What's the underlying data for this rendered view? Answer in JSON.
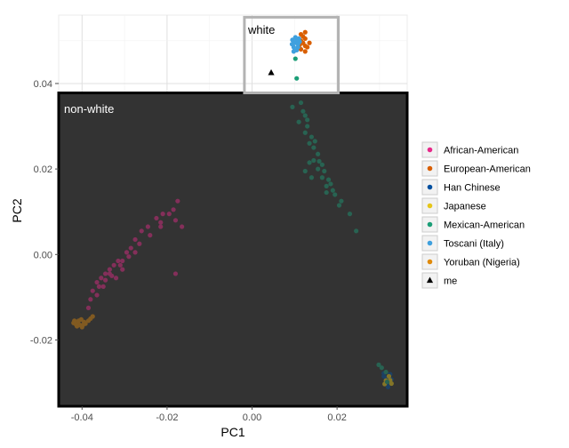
{
  "chart_data": {
    "type": "scatter",
    "title": "",
    "xlabel": "PC1",
    "ylabel": "PC2",
    "xlim": [
      -0.0455,
      0.0365
    ],
    "ylim": [
      -0.0355,
      0.056
    ],
    "x_ticks": [
      -0.04,
      -0.02,
      0.0,
      0.02
    ],
    "x_tick_labels": [
      "-0.04",
      "-0.02",
      "0.00",
      "0.02"
    ],
    "y_ticks": [
      -0.02,
      0.0,
      0.02,
      0.04
    ],
    "y_tick_labels": [
      "-0.02",
      "0.00",
      "0.02",
      "0.04"
    ],
    "grid": true,
    "legend_position": "right",
    "annotations": {
      "white_label": "white",
      "non_white_label": "non-white"
    },
    "regions": {
      "non_white": {
        "x": [
          -0.0455,
          0.0365
        ],
        "y": [
          -0.0355,
          0.0378
        ]
      },
      "white": {
        "x": [
          -0.0018,
          0.0203
        ],
        "y": [
          0.0378,
          0.0555
        ]
      }
    },
    "series": [
      {
        "name": "African-American",
        "color": "#e7298a",
        "marker": "circle",
        "points": [
          [
            -0.0175,
            0.0125
          ],
          [
            -0.018,
            0.008
          ],
          [
            -0.0165,
            0.0065
          ],
          [
            -0.0195,
            0.0095
          ],
          [
            -0.0185,
            0.0105
          ],
          [
            -0.021,
            0.0095
          ],
          [
            -0.0225,
            0.0085
          ],
          [
            -0.0215,
            0.0075
          ],
          [
            -0.0245,
            0.0065
          ],
          [
            -0.026,
            0.0055
          ],
          [
            -0.024,
            0.0045
          ],
          [
            -0.0275,
            0.0035
          ],
          [
            -0.0265,
            0.0025
          ],
          [
            -0.0285,
            0.0015
          ],
          [
            -0.0275,
            0.0005
          ],
          [
            -0.0295,
            0.0005
          ],
          [
            -0.029,
            -0.0005
          ],
          [
            -0.0305,
            -0.0015
          ],
          [
            -0.0315,
            -0.0015
          ],
          [
            -0.031,
            -0.0025
          ],
          [
            -0.0325,
            -0.0025
          ],
          [
            -0.0335,
            -0.0035
          ],
          [
            -0.0345,
            -0.0045
          ],
          [
            -0.033,
            -0.005
          ],
          [
            -0.0355,
            -0.0055
          ],
          [
            -0.0345,
            -0.006
          ],
          [
            -0.0365,
            -0.0065
          ],
          [
            -0.035,
            -0.0075
          ],
          [
            -0.0375,
            -0.0085
          ],
          [
            -0.0365,
            -0.0095
          ],
          [
            -0.038,
            -0.0105
          ],
          [
            -0.0385,
            -0.0125
          ],
          [
            -0.0215,
            0.0065
          ],
          [
            -0.018,
            -0.0045
          ],
          [
            -0.0305,
            -0.0035
          ],
          [
            -0.0335,
            -0.0045
          ],
          [
            -0.032,
            -0.0055
          ],
          [
            -0.036,
            -0.0075
          ]
        ]
      },
      {
        "name": "European-American",
        "color": "#d95f02",
        "marker": "circle",
        "points": [
          [
            0.0115,
            0.0515
          ],
          [
            0.0125,
            0.0505
          ],
          [
            0.0125,
            0.052
          ],
          [
            0.012,
            0.0495
          ],
          [
            0.013,
            0.0485
          ],
          [
            0.0115,
            0.048
          ],
          [
            0.0125,
            0.0475
          ],
          [
            0.0115,
            0.05
          ],
          [
            0.012,
            0.051
          ],
          [
            0.0135,
            0.0495
          ],
          [
            0.0125,
            0.0488
          ],
          [
            0.0112,
            0.049
          ]
        ]
      },
      {
        "name": "Han Chinese",
        "color": "#0050a0",
        "marker": "circle",
        "points": [
          [
            0.0315,
            -0.029
          ],
          [
            0.032,
            -0.0295
          ],
          [
            0.0325,
            -0.03
          ],
          [
            0.031,
            -0.0285
          ],
          [
            0.0325,
            -0.028
          ],
          [
            0.032,
            -0.031
          ],
          [
            0.0318,
            -0.0305
          ],
          [
            0.0322,
            -0.0288
          ],
          [
            0.031,
            -0.0278
          ],
          [
            0.0328,
            -0.0292
          ]
        ]
      },
      {
        "name": "Japanese",
        "color": "#e6c619",
        "marker": "circle",
        "points": [
          [
            0.0315,
            -0.0295
          ],
          [
            0.0322,
            -0.0285
          ],
          [
            0.0328,
            -0.0302
          ],
          [
            0.0312,
            -0.0303
          ],
          [
            0.0325,
            -0.0294
          ]
        ]
      },
      {
        "name": "Mexican-American",
        "color": "#1b9e77",
        "marker": "circle",
        "points": [
          [
            0.0095,
            0.0345
          ],
          [
            0.0115,
            0.0355
          ],
          [
            0.012,
            0.0335
          ],
          [
            0.0125,
            0.0325
          ],
          [
            0.011,
            0.031
          ],
          [
            0.013,
            0.03
          ],
          [
            0.0125,
            0.0285
          ],
          [
            0.014,
            0.0275
          ],
          [
            0.0135,
            0.026
          ],
          [
            0.0145,
            0.025
          ],
          [
            0.0155,
            0.0235
          ],
          [
            0.0145,
            0.022
          ],
          [
            0.0165,
            0.021
          ],
          [
            0.0155,
            0.02
          ],
          [
            0.017,
            0.0195
          ],
          [
            0.0165,
            0.018
          ],
          [
            0.018,
            0.0175
          ],
          [
            0.0175,
            0.016
          ],
          [
            0.0185,
            0.0165
          ],
          [
            0.019,
            0.015
          ],
          [
            0.0195,
            0.014
          ],
          [
            0.021,
            0.0125
          ],
          [
            0.0205,
            0.0115
          ],
          [
            0.023,
            0.0095
          ],
          [
            0.0245,
            0.0055
          ],
          [
            0.0135,
            0.0215
          ],
          [
            0.0125,
            0.0195
          ],
          [
            0.014,
            0.018
          ],
          [
            0.0175,
            0.0145
          ],
          [
            0.0158,
            0.0218
          ],
          [
            0.0148,
            0.0265
          ],
          [
            0.013,
            0.0315
          ],
          [
            0.0102,
            0.0458
          ],
          [
            0.0105,
            0.0412
          ],
          [
            0.0315,
            -0.0275
          ],
          [
            0.0305,
            -0.0265
          ],
          [
            0.0298,
            -0.0258
          ],
          [
            0.0318,
            -0.0298
          ]
        ]
      },
      {
        "name": "Toscani (Italy)",
        "color": "#3fa0de",
        "marker": "circle",
        "points": [
          [
            0.0095,
            0.0502
          ],
          [
            0.0102,
            0.0508
          ],
          [
            0.0108,
            0.0492
          ],
          [
            0.0098,
            0.0485
          ],
          [
            0.0105,
            0.0478
          ],
          [
            0.0112,
            0.0498
          ],
          [
            0.01,
            0.0495
          ],
          [
            0.0108,
            0.0485
          ],
          [
            0.0098,
            0.0475
          ],
          [
            0.011,
            0.0505
          ],
          [
            0.0105,
            0.05
          ],
          [
            0.0094,
            0.0492
          ]
        ]
      },
      {
        "name": "Yoruban (Nigeria)",
        "color": "#e08a0b",
        "marker": "circle",
        "points": [
          [
            -0.041,
            -0.016
          ],
          [
            -0.0405,
            -0.0165
          ],
          [
            -0.0395,
            -0.0158
          ],
          [
            -0.0415,
            -0.0163
          ],
          [
            -0.042,
            -0.016
          ],
          [
            -0.04,
            -0.017
          ],
          [
            -0.0385,
            -0.0155
          ],
          [
            -0.0392,
            -0.0162
          ],
          [
            -0.0408,
            -0.0155
          ],
          [
            -0.0412,
            -0.0168
          ],
          [
            -0.0398,
            -0.0165
          ],
          [
            -0.038,
            -0.015
          ],
          [
            -0.0375,
            -0.0145
          ],
          [
            -0.0418,
            -0.0155
          ],
          [
            -0.0402,
            -0.0152
          ]
        ]
      },
      {
        "name": "me",
        "color": "#000000",
        "marker": "triangle",
        "points": [
          [
            0.0045,
            0.0425
          ]
        ]
      }
    ]
  }
}
